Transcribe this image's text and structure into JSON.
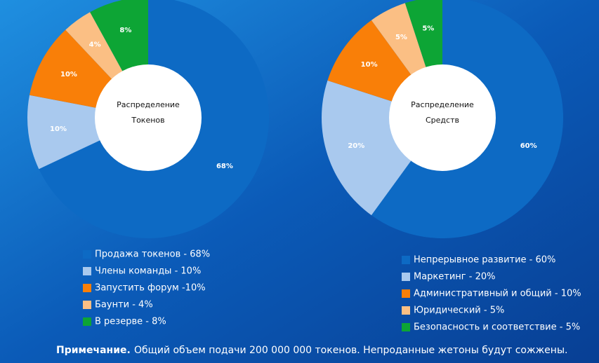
{
  "chart_data": [
    {
      "type": "pie",
      "center_label": [
        "Распределение",
        "Токенов"
      ],
      "categories": [
        "Продажа токенов - 68%",
        "Члены команды - 10%",
        "Запустить форум -10%",
        "Баунти - 4%",
        "В резерве - 8%"
      ],
      "values": [
        68,
        10,
        10,
        4,
        8
      ],
      "value_labels": [
        "68%",
        "10%",
        "10%",
        "4%",
        "8%"
      ],
      "colors": [
        "#0d6ac4",
        "#a9c9ee",
        "#f97f08",
        "#fbbf84",
        "#0da535"
      ]
    },
    {
      "type": "pie",
      "center_label": [
        "Распределение",
        "Средств"
      ],
      "categories": [
        "Непрерывное развитие - 60%",
        "Маркетинг - 20%",
        "Административный и общий - 10%",
        "Юридический - 5%",
        "Безопасность и соответствие - 5%"
      ],
      "values": [
        60,
        20,
        10,
        5,
        5
      ],
      "value_labels": [
        "60%",
        "20%",
        "10%",
        "5%",
        "5%"
      ],
      "colors": [
        "#0d6ac4",
        "#a9c9ee",
        "#f97f08",
        "#fbbf84",
        "#0da535"
      ]
    }
  ],
  "note": {
    "lead": "Примечание.",
    "text": "Общий объем подачи 200 000 000 токенов. Непроданные жетоны будут сожжены."
  }
}
